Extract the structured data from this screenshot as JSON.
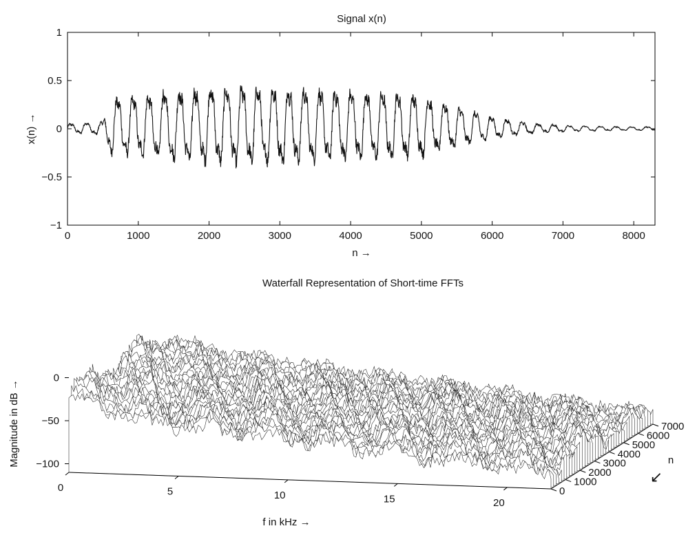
{
  "chart_data": [
    {
      "type": "line",
      "title": "Signal x(n)",
      "xlabel": "n →",
      "ylabel": "x(n) →",
      "xlim": [
        0,
        8300
      ],
      "ylim": [
        -1,
        1
      ],
      "xticks": [
        0,
        1000,
        2000,
        3000,
        4000,
        5000,
        6000,
        7000,
        8000
      ],
      "xtick_labels": [
        "0",
        "1000",
        "2000",
        "3000",
        "4000",
        "5000",
        "6000",
        "7000",
        "8000"
      ],
      "yticks": [
        1,
        0.5,
        0,
        -0.5,
        -1
      ],
      "ytick_labels": [
        "1",
        "0.5",
        "0",
        "−0.5",
        "−1"
      ],
      "grid": false,
      "series": [
        {
          "note_only_in_description": false,
          "envelope_x": [
            0,
            500,
            600,
            1000,
            1500,
            2000,
            2500,
            3000,
            3500,
            4000,
            4500,
            5000,
            5500,
            6000,
            6500,
            7000,
            7500,
            8000,
            8300
          ],
          "envelope_amplitude": [
            0.05,
            0.07,
            0.3,
            0.33,
            0.38,
            0.42,
            0.43,
            0.42,
            0.4,
            0.38,
            0.37,
            0.34,
            0.22,
            0.12,
            0.06,
            0.035,
            0.025,
            0.02,
            0.02
          ],
          "period_samples": 220
        }
      ]
    },
    {
      "type": "surface",
      "title": "Waterfall Representation of Short-time FFTs",
      "xlabel": "f in kHz →",
      "ylabel": "Magnitude in dB →",
      "zlabel": "n",
      "xlim": [
        0,
        22
      ],
      "xticks": [
        0,
        5,
        10,
        15,
        20
      ],
      "xtick_labels": [
        "0",
        "5",
        "10",
        "15",
        "20"
      ],
      "ylim": [
        0,
        7000
      ],
      "yticks": [
        0,
        1000,
        2000,
        3000,
        4000,
        5000,
        6000,
        7000
      ],
      "ytick_labels": [
        "0",
        "1000",
        "2000",
        "3000",
        "4000",
        "5000",
        "6000",
        "7000"
      ],
      "zlim": [
        -110,
        10
      ],
      "zticks": [
        0,
        -50,
        -100
      ],
      "ztick_labels": [
        "0",
        "−50",
        "−100"
      ],
      "n_arrow": "↙"
    }
  ]
}
